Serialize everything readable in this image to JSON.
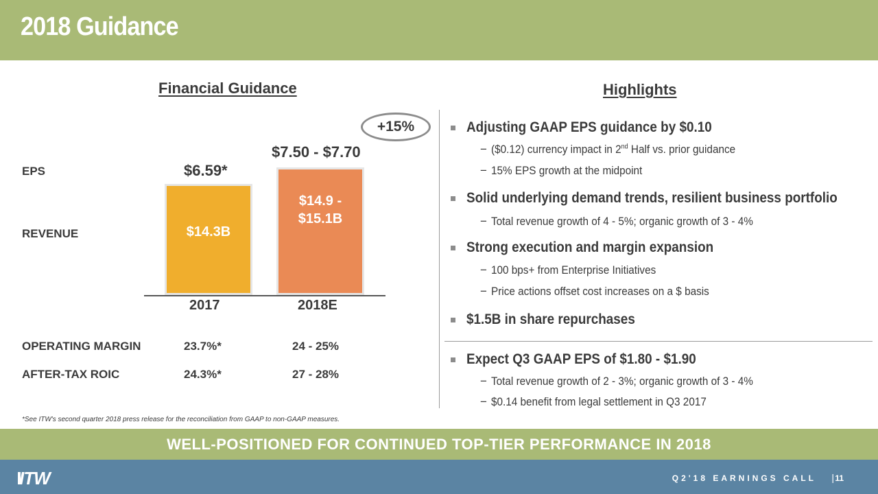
{
  "header": {
    "title": "2018 Guidance"
  },
  "left": {
    "section_title": "Financial Guidance",
    "badge": "+15%",
    "labels": {
      "eps": "EPS",
      "revenue": "REVENUE",
      "operating_margin": "OPERATING MARGIN",
      "roic": "AFTER-TAX ROIC"
    },
    "eps_2017": "$6.59*",
    "eps_2018": "$7.50 - $7.70",
    "rev_2017": "$14.3B",
    "rev_2018_line1": "$14.9 -",
    "rev_2018_line2": "$15.1B",
    "year_2017": "2017",
    "year_2018": "2018E",
    "om_2017": "23.7%*",
    "om_2018": "24 - 25%",
    "roic_2017": "24.3%*",
    "roic_2018": "27 - 28%"
  },
  "chart_data": {
    "type": "bar",
    "categories": [
      "2017",
      "2018E"
    ],
    "values": [
      14.3,
      15.0
    ],
    "title": "",
    "xlabel": "",
    "ylabel": "",
    "colors": [
      "#f0ae2d",
      "#ea8a55"
    ]
  },
  "right": {
    "section_title": "Highlights",
    "b1": "Adjusting GAAP EPS guidance by $0.10",
    "b1_s1_pre": "($0.12) currency impact in 2",
    "b1_s1_sup": "nd",
    "b1_s1_post": " Half vs. prior guidance",
    "b1_s2": "15% EPS growth at the midpoint",
    "b2": "Solid underlying demand trends, resilient business portfolio",
    "b2_s1": "Total revenue growth of 4 - 5%; organic growth of 3 - 4%",
    "b3": "Strong execution and margin expansion",
    "b3_s1": "100 bps+ from Enterprise Initiatives",
    "b3_s2": "Price actions offset cost increases on a $ basis",
    "b4": "$1.5B in share repurchases",
    "b5": "Expect Q3 GAAP EPS of $1.80 - $1.90",
    "b5_s1": "Total revenue growth of 2 - 3%; organic growth of 3 - 4%",
    "b5_s2": "$0.14 benefit from legal settlement in Q3 2017",
    "dash": "−"
  },
  "footnote": "*See ITW's second quarter 2018 press release for the reconciliation from GAAP to non-GAAP measures.",
  "banner": "WELL-POSITIONED FOR CONTINUED TOP-TIER PERFORMANCE IN 2018",
  "footer": {
    "logo": "ITW",
    "call": "Q2'18 EARNINGS CALL",
    "sep": "|",
    "page": "11"
  },
  "colors": {
    "green": "#a9ba76",
    "blue": "#5b84a3",
    "bar_2017": "#f0ae2d",
    "bar_2018": "#ea8a55"
  }
}
